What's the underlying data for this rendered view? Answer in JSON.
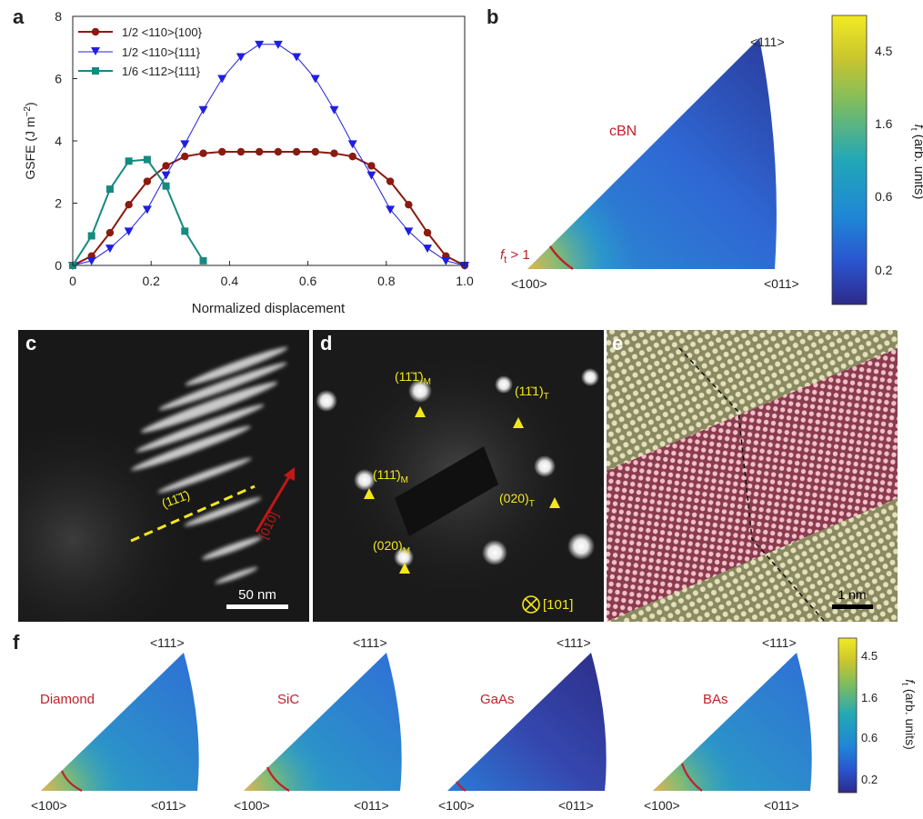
{
  "panels": {
    "a": "a",
    "b": "b",
    "c": "c",
    "d": "d",
    "e": "e",
    "f": "f"
  },
  "chart_data": {
    "type": "line",
    "xlabel": "Normalized displacement",
    "ylabel_main": "GSFE (J m",
    "ylabel_sup": "−2",
    "ylabel_end": ")",
    "xlim": [
      0,
      1.0
    ],
    "ylim": [
      0,
      8
    ],
    "xticks": [
      0,
      0.2,
      0.4,
      0.6,
      0.8,
      1.0
    ],
    "xtick_labels": [
      "0",
      "0.2",
      "0.4",
      "0.6",
      "0.8",
      "1.0"
    ],
    "yticks": [
      0,
      2,
      4,
      6,
      8
    ],
    "ytick_labels": [
      "0",
      "2",
      "4",
      "6",
      "8"
    ],
    "legend_position": "top-left",
    "series": [
      {
        "name": "1/2 <110>{100}",
        "color": "#8b1a10",
        "marker": "circle",
        "x": [
          0,
          0.048,
          0.095,
          0.143,
          0.19,
          0.238,
          0.286,
          0.333,
          0.381,
          0.429,
          0.476,
          0.524,
          0.571,
          0.619,
          0.667,
          0.714,
          0.762,
          0.81,
          0.857,
          0.905,
          0.952,
          1.0
        ],
        "y": [
          0,
          0.3,
          1.05,
          1.95,
          2.7,
          3.2,
          3.5,
          3.6,
          3.65,
          3.65,
          3.65,
          3.65,
          3.65,
          3.65,
          3.6,
          3.5,
          3.2,
          2.7,
          1.95,
          1.05,
          0.3,
          0
        ]
      },
      {
        "name": "1/2 <110>{111}",
        "color": "#1f1fe0",
        "marker": "triangle-down",
        "x": [
          0,
          0.048,
          0.095,
          0.143,
          0.19,
          0.238,
          0.286,
          0.333,
          0.381,
          0.429,
          0.476,
          0.524,
          0.571,
          0.619,
          0.667,
          0.714,
          0.762,
          0.81,
          0.857,
          0.905,
          0.952,
          1.0
        ],
        "y": [
          0,
          0.15,
          0.55,
          1.1,
          1.8,
          2.9,
          3.9,
          5.0,
          6.0,
          6.7,
          7.1,
          7.1,
          6.7,
          6.0,
          5.0,
          3.9,
          2.9,
          1.8,
          1.1,
          0.55,
          0.15,
          0
        ]
      },
      {
        "name": "1/6 <112>{111}",
        "color": "#168a7f",
        "marker": "square",
        "x": [
          0,
          0.048,
          0.095,
          0.143,
          0.19,
          0.238,
          0.286,
          0.333
        ],
        "y": [
          0,
          0.95,
          2.45,
          3.35,
          3.4,
          2.55,
          1.1,
          0.15
        ]
      }
    ]
  },
  "panel_b": {
    "label_111": "<111>",
    "label_100": "<100>",
    "label_011": "<011>",
    "material": "cBN",
    "threshold_f": "f",
    "threshold_sub": "t",
    "threshold_rest": " > 1",
    "colorbar_ticks": [
      "4.5",
      "1.6",
      "0.6",
      "0.2"
    ],
    "colorbar_label_f": "f",
    "colorbar_label_sub": "t",
    "colorbar_label_rest": " (arb. units)"
  },
  "panel_c": {
    "plane_label": "(11̄1̄)",
    "direction_label": "[010]",
    "scalebar": "50 nm"
  },
  "panel_d": {
    "spots": [
      {
        "main": "(11̄1̄)",
        "sub": "M"
      },
      {
        "main": "(11̄1)",
        "sub": "T"
      },
      {
        "main": "(111̄)",
        "sub": "M"
      },
      {
        "main": "(020)",
        "sub": "T"
      },
      {
        "main": "(020)",
        "sub": "M"
      }
    ],
    "zone_axis": "[101]"
  },
  "panel_e": {
    "scalebar": "1 nm"
  },
  "panel_f": {
    "materials": [
      "Diamond",
      "SiC",
      "GaAs",
      "BAs"
    ],
    "label_111": "<111>",
    "label_100": "<100>",
    "label_011": "<011>",
    "colorbar_ticks": [
      "4.5",
      "1.6",
      "0.6",
      "0.2"
    ],
    "colorbar_label_f": "f",
    "colorbar_label_sub": "t",
    "colorbar_label_rest": " (arb. units)"
  }
}
